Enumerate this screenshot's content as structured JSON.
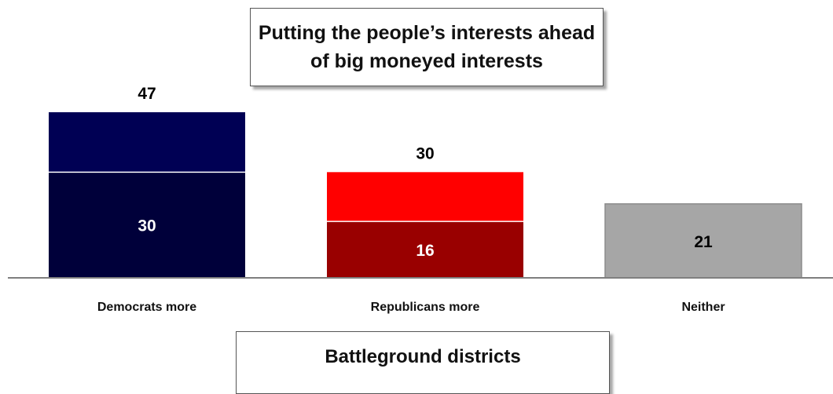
{
  "chart_data": {
    "type": "bar",
    "title": "Putting the people’s interests ahead of big moneyed interests",
    "categories": [
      "Democrats more",
      "Republicans more",
      "Neither"
    ],
    "totals": [
      47,
      30,
      21
    ],
    "inner_values": [
      30,
      16,
      null
    ],
    "ylim": [
      0,
      47
    ],
    "grid": false,
    "colors": {
      "democrats_outer": "#000054",
      "democrats_inner": "#00003A",
      "republicans_outer": "#FF0000",
      "republicans_inner": "#990000",
      "neither": "#A6A6A6",
      "axis": "#7F7F7F"
    },
    "footer": "Battleground districts"
  }
}
